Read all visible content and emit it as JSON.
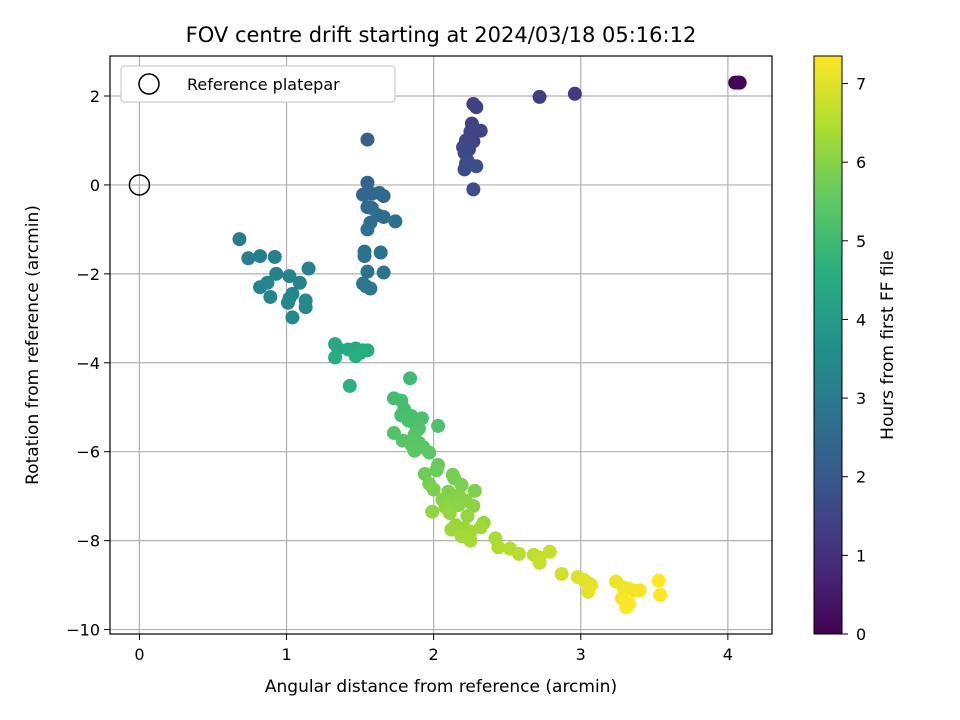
{
  "chart_data": {
    "type": "scatter",
    "title": "FOV centre drift starting at 2024/03/18 05:16:12",
    "xlabel": "Angular distance from reference (arcmin)",
    "ylabel": "Rotation from reference (arcmin)",
    "xlim": [
      -0.2,
      4.3
    ],
    "ylim": [
      -10.1,
      2.9
    ],
    "xticks": [
      0,
      1,
      2,
      3,
      4
    ],
    "yticks": [
      2,
      0,
      -2,
      -4,
      -6,
      -8,
      -10
    ],
    "grid": true,
    "legend": {
      "label": "Reference platepar",
      "location": "upper left",
      "marker": "open circle"
    },
    "reference_point": {
      "x": 0,
      "y": 0
    },
    "colorbar": {
      "label": "Hours from first FF file",
      "range": [
        0,
        7.35
      ],
      "ticks": [
        0,
        1,
        2,
        3,
        4,
        5,
        6,
        7
      ],
      "colormap": "viridis"
    },
    "points": [
      {
        "x": 4.05,
        "y": 2.3,
        "c": 0.0
      },
      {
        "x": 4.08,
        "y": 2.3,
        "c": 0.05
      },
      {
        "x": 4.07,
        "y": 2.3,
        "c": 0.1
      },
      {
        "x": 2.96,
        "y": 2.05,
        "c": 1.25
      },
      {
        "x": 2.72,
        "y": 1.98,
        "c": 1.3
      },
      {
        "x": 2.27,
        "y": 1.82,
        "c": 1.4
      },
      {
        "x": 2.29,
        "y": 1.75,
        "c": 1.42
      },
      {
        "x": 2.26,
        "y": 1.38,
        "c": 1.45
      },
      {
        "x": 2.32,
        "y": 1.22,
        "c": 1.48
      },
      {
        "x": 2.25,
        "y": 1.2,
        "c": 1.5
      },
      {
        "x": 2.22,
        "y": 1.0,
        "c": 1.52
      },
      {
        "x": 2.27,
        "y": 0.98,
        "c": 1.55
      },
      {
        "x": 2.2,
        "y": 0.85,
        "c": 1.58
      },
      {
        "x": 2.24,
        "y": 0.8,
        "c": 1.6
      },
      {
        "x": 2.21,
        "y": 0.72,
        "c": 1.62
      },
      {
        "x": 2.23,
        "y": 0.55,
        "c": 1.65
      },
      {
        "x": 2.22,
        "y": 0.48,
        "c": 1.67
      },
      {
        "x": 2.21,
        "y": 0.35,
        "c": 1.7
      },
      {
        "x": 2.29,
        "y": 0.42,
        "c": 1.72
      },
      {
        "x": 2.27,
        "y": -0.1,
        "c": 1.75
      },
      {
        "x": 1.55,
        "y": 1.02,
        "c": 2.2
      },
      {
        "x": 1.55,
        "y": 0.05,
        "c": 2.35
      },
      {
        "x": 1.52,
        "y": -0.22,
        "c": 2.4
      },
      {
        "x": 1.58,
        "y": -0.2,
        "c": 2.42
      },
      {
        "x": 1.63,
        "y": -0.18,
        "c": 2.45
      },
      {
        "x": 1.66,
        "y": -0.25,
        "c": 2.48
      },
      {
        "x": 1.55,
        "y": -0.5,
        "c": 2.5
      },
      {
        "x": 1.58,
        "y": -0.52,
        "c": 2.52
      },
      {
        "x": 1.62,
        "y": -0.68,
        "c": 2.6
      },
      {
        "x": 1.66,
        "y": -0.72,
        "c": 2.62
      },
      {
        "x": 1.74,
        "y": -0.82,
        "c": 2.65
      },
      {
        "x": 1.57,
        "y": -0.85,
        "c": 2.68
      },
      {
        "x": 1.55,
        "y": -1.0,
        "c": 2.7
      },
      {
        "x": 1.53,
        "y": -1.5,
        "c": 2.72
      },
      {
        "x": 1.64,
        "y": -1.52,
        "c": 2.75
      },
      {
        "x": 1.53,
        "y": -1.6,
        "c": 2.78
      },
      {
        "x": 1.55,
        "y": -1.95,
        "c": 2.8
      },
      {
        "x": 1.66,
        "y": -1.97,
        "c": 2.82
      },
      {
        "x": 1.52,
        "y": -2.22,
        "c": 2.85
      },
      {
        "x": 1.54,
        "y": -2.28,
        "c": 2.87
      },
      {
        "x": 1.57,
        "y": -2.33,
        "c": 2.9
      },
      {
        "x": 0.68,
        "y": -1.22,
        "c": 3.05
      },
      {
        "x": 0.74,
        "y": -1.65,
        "c": 3.1
      },
      {
        "x": 0.82,
        "y": -1.6,
        "c": 3.12
      },
      {
        "x": 0.92,
        "y": -1.62,
        "c": 3.15
      },
      {
        "x": 1.15,
        "y": -1.88,
        "c": 3.18
      },
      {
        "x": 0.93,
        "y": -2.0,
        "c": 3.2
      },
      {
        "x": 1.02,
        "y": -2.05,
        "c": 3.22
      },
      {
        "x": 1.09,
        "y": -2.2,
        "c": 3.25
      },
      {
        "x": 0.87,
        "y": -2.2,
        "c": 3.28
      },
      {
        "x": 0.82,
        "y": -2.3,
        "c": 3.3
      },
      {
        "x": 1.04,
        "y": -2.45,
        "c": 3.32
      },
      {
        "x": 0.89,
        "y": -2.52,
        "c": 3.35
      },
      {
        "x": 1.02,
        "y": -2.55,
        "c": 3.38
      },
      {
        "x": 1.13,
        "y": -2.6,
        "c": 3.4
      },
      {
        "x": 1.01,
        "y": -2.65,
        "c": 3.42
      },
      {
        "x": 1.13,
        "y": -2.75,
        "c": 3.45
      },
      {
        "x": 1.04,
        "y": -2.98,
        "c": 3.48
      },
      {
        "x": 1.33,
        "y": -3.58,
        "c": 4.4
      },
      {
        "x": 1.35,
        "y": -3.68,
        "c": 4.42
      },
      {
        "x": 1.42,
        "y": -3.7,
        "c": 4.45
      },
      {
        "x": 1.47,
        "y": -3.68,
        "c": 4.48
      },
      {
        "x": 1.52,
        "y": -3.72,
        "c": 4.5
      },
      {
        "x": 1.55,
        "y": -3.72,
        "c": 4.52
      },
      {
        "x": 1.5,
        "y": -3.78,
        "c": 4.55
      },
      {
        "x": 1.47,
        "y": -3.85,
        "c": 4.58
      },
      {
        "x": 1.33,
        "y": -3.88,
        "c": 4.6
      },
      {
        "x": 1.43,
        "y": -4.52,
        "c": 4.65
      },
      {
        "x": 1.84,
        "y": -4.35,
        "c": 5.0
      },
      {
        "x": 1.73,
        "y": -4.8,
        "c": 5.05
      },
      {
        "x": 1.78,
        "y": -4.85,
        "c": 5.08
      },
      {
        "x": 1.8,
        "y": -5.05,
        "c": 5.1
      },
      {
        "x": 1.78,
        "y": -5.18,
        "c": 5.12
      },
      {
        "x": 1.85,
        "y": -5.2,
        "c": 5.15
      },
      {
        "x": 1.83,
        "y": -5.3,
        "c": 5.18
      },
      {
        "x": 1.92,
        "y": -5.25,
        "c": 5.2
      },
      {
        "x": 1.88,
        "y": -5.4,
        "c": 5.22
      },
      {
        "x": 2.03,
        "y": -5.42,
        "c": 5.25
      },
      {
        "x": 1.9,
        "y": -5.48,
        "c": 5.28
      },
      {
        "x": 1.73,
        "y": -5.58,
        "c": 5.3
      },
      {
        "x": 1.87,
        "y": -5.62,
        "c": 5.33
      },
      {
        "x": 1.79,
        "y": -5.75,
        "c": 5.35
      },
      {
        "x": 1.9,
        "y": -5.8,
        "c": 5.38
      },
      {
        "x": 1.85,
        "y": -5.85,
        "c": 5.4
      },
      {
        "x": 1.93,
        "y": -5.9,
        "c": 5.43
      },
      {
        "x": 1.87,
        "y": -5.98,
        "c": 5.45
      },
      {
        "x": 1.97,
        "y": -6.02,
        "c": 5.48
      },
      {
        "x": 2.03,
        "y": -6.3,
        "c": 5.6
      },
      {
        "x": 2.02,
        "y": -6.42,
        "c": 5.65
      },
      {
        "x": 1.94,
        "y": -6.5,
        "c": 5.7
      },
      {
        "x": 2.13,
        "y": -6.52,
        "c": 5.75
      },
      {
        "x": 2.14,
        "y": -6.6,
        "c": 5.78
      },
      {
        "x": 1.97,
        "y": -6.72,
        "c": 5.8
      },
      {
        "x": 2.19,
        "y": -6.75,
        "c": 5.83
      },
      {
        "x": 2.0,
        "y": -6.85,
        "c": 5.85
      },
      {
        "x": 2.28,
        "y": -6.88,
        "c": 5.88
      },
      {
        "x": 2.1,
        "y": -6.9,
        "c": 5.9
      },
      {
        "x": 2.17,
        "y": -6.98,
        "c": 5.93
      },
      {
        "x": 2.06,
        "y": -7.08,
        "c": 5.95
      },
      {
        "x": 2.13,
        "y": -7.05,
        "c": 5.98
      },
      {
        "x": 2.22,
        "y": -7.1,
        "c": 6.0
      },
      {
        "x": 2.17,
        "y": -7.2,
        "c": 6.03
      },
      {
        "x": 2.27,
        "y": -7.22,
        "c": 6.05
      },
      {
        "x": 2.08,
        "y": -7.25,
        "c": 6.08
      },
      {
        "x": 1.99,
        "y": -7.35,
        "c": 6.1
      },
      {
        "x": 2.11,
        "y": -7.38,
        "c": 6.12
      },
      {
        "x": 2.23,
        "y": -7.45,
        "c": 6.15
      },
      {
        "x": 2.34,
        "y": -7.6,
        "c": 6.18
      },
      {
        "x": 2.15,
        "y": -7.65,
        "c": 6.2
      },
      {
        "x": 2.12,
        "y": -7.75,
        "c": 6.22
      },
      {
        "x": 2.21,
        "y": -7.72,
        "c": 6.25
      },
      {
        "x": 2.32,
        "y": -7.7,
        "c": 6.28
      },
      {
        "x": 2.25,
        "y": -7.8,
        "c": 6.3
      },
      {
        "x": 2.19,
        "y": -7.9,
        "c": 6.32
      },
      {
        "x": 2.25,
        "y": -8.0,
        "c": 6.35
      },
      {
        "x": 2.42,
        "y": -7.95,
        "c": 6.4
      },
      {
        "x": 2.44,
        "y": -8.15,
        "c": 6.45
      },
      {
        "x": 2.52,
        "y": -8.18,
        "c": 6.5
      },
      {
        "x": 2.58,
        "y": -8.3,
        "c": 6.55
      },
      {
        "x": 2.68,
        "y": -8.32,
        "c": 6.6
      },
      {
        "x": 2.72,
        "y": -8.38,
        "c": 6.65
      },
      {
        "x": 2.79,
        "y": -8.25,
        "c": 6.7
      },
      {
        "x": 2.72,
        "y": -8.5,
        "c": 6.72
      },
      {
        "x": 2.87,
        "y": -8.75,
        "c": 6.85
      },
      {
        "x": 2.98,
        "y": -8.82,
        "c": 6.95
      },
      {
        "x": 3.02,
        "y": -8.88,
        "c": 7.0
      },
      {
        "x": 3.05,
        "y": -8.95,
        "c": 7.02
      },
      {
        "x": 3.07,
        "y": -9.0,
        "c": 7.05
      },
      {
        "x": 3.05,
        "y": -9.15,
        "c": 7.08
      },
      {
        "x": 3.24,
        "y": -8.92,
        "c": 7.15
      },
      {
        "x": 3.29,
        "y": -9.05,
        "c": 7.18
      },
      {
        "x": 3.32,
        "y": -9.08,
        "c": 7.2
      },
      {
        "x": 3.36,
        "y": -9.12,
        "c": 7.22
      },
      {
        "x": 3.4,
        "y": -9.12,
        "c": 7.25
      },
      {
        "x": 3.28,
        "y": -9.3,
        "c": 7.27
      },
      {
        "x": 3.3,
        "y": -9.38,
        "c": 7.3
      },
      {
        "x": 3.33,
        "y": -9.42,
        "c": 7.32
      },
      {
        "x": 3.31,
        "y": -9.5,
        "c": 7.33
      },
      {
        "x": 3.53,
        "y": -8.9,
        "c": 7.34
      },
      {
        "x": 3.54,
        "y": -9.22,
        "c": 7.35
      }
    ]
  }
}
